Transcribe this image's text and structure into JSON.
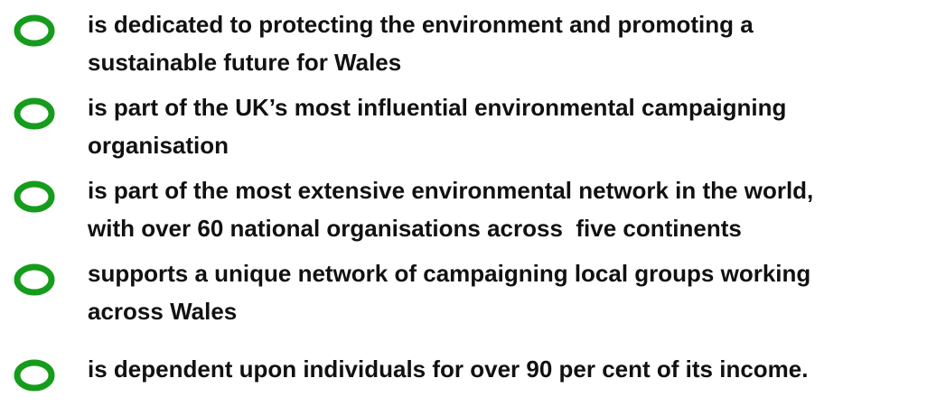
{
  "list": {
    "items": [
      {
        "lines": [
          "is dedicated to protecting the environment and promoting a",
          "sustainable future for Wales"
        ]
      },
      {
        "lines": [
          "is part of the UK’s most influential environmental campaigning",
          "organisation"
        ]
      },
      {
        "lines": [
          "is part of the most extensive environmental network in the world,",
          "with over 60 national organisations across  five continents"
        ]
      },
      {
        "lines": [
          "supports a unique network of campaigning local groups working",
          "across Wales"
        ]
      },
      {
        "lines": [
          "is dependent upon individuals for over 90 per cent of its income."
        ]
      }
    ]
  }
}
